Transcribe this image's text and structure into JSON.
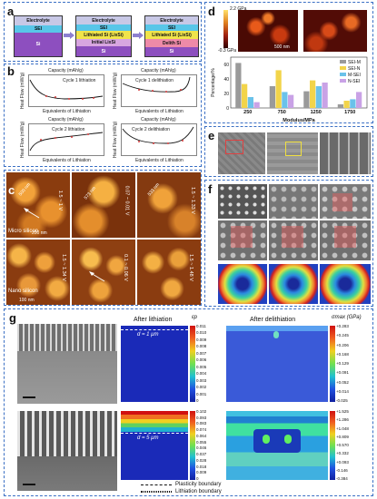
{
  "panel_labels": {
    "a": "a",
    "b": "b",
    "c": "c",
    "d": "d",
    "e": "e",
    "f": "f",
    "g": "g"
  },
  "panel_a": {
    "stage1": {
      "electrolyte": "Electrolyte",
      "sei": "SEI",
      "si": "Si"
    },
    "stage2": {
      "electrolyte": "Electrolyte",
      "sei": "SEI",
      "lithiated": "Lithiated Si (LixSi)",
      "initial": "Initial LixSi",
      "si": "Si"
    },
    "stage3": {
      "electrolyte": "Electrolyte",
      "sei": "SEI",
      "lithiated": "Lithiated Si (LixSi)",
      "delith": "Delith Si",
      "si": "Si"
    }
  },
  "panel_b": {
    "plots": [
      {
        "top_label": "Capacity (mAh/g)",
        "title": "Cycle 1 lithiation",
        "ylabel": "Heat Flow (mW/g)",
        "xlabel": "Equivalents of Lithiation"
      },
      {
        "top_label": "Capacity (mAh/g)",
        "title": "Cycle 1 delithiation",
        "ylabel": "Heat Flow (mW/g)",
        "xlabel": "Equivalents of Lithiation"
      },
      {
        "top_label": "Capacity (mAh/g)",
        "title": "Cycle 2 lithiation",
        "ylabel": "Heat Flow (mW/g)",
        "xlabel": "Equivalents of Lithiation"
      },
      {
        "top_label": "Capacity (mAh/g)",
        "title": "Cycle 2 delithiation",
        "ylabel": "Heat Flow (mW/g)",
        "xlabel": "Equivalents of Lithiation"
      }
    ]
  },
  "panel_c": {
    "micro": "Micro silicon",
    "nano": "Nano silicon",
    "scale_top": "200 nm",
    "scale_bottom": "100 nm",
    "voltages_top": [
      "1.5 ~ 1 V",
      "0.07 ~ 0.01 V",
      "1.5 ~ 1.33 V"
    ],
    "voltages_bottom": [
      "1.5 ~ 1.34 V",
      "0.1 ~ 0.06 V",
      "1.5 ~ 1.48 V"
    ],
    "annotations": [
      "500 nm",
      "573 nm",
      "533 nm"
    ]
  },
  "panel_d": {
    "colorbar_top": "2.2 GPa",
    "colorbar_bottom": "-0.3 GPa",
    "scale": "500 nm",
    "chart_data": {
      "type": "bar",
      "categories": [
        "250",
        "750",
        "1250",
        "1750"
      ],
      "series": [
        {
          "name": "SEI-M",
          "values": [
            62,
            30,
            23,
            5
          ]
        },
        {
          "name": "SEI-N",
          "values": [
            33,
            52,
            38,
            10
          ]
        },
        {
          "name": "M-SEI",
          "values": [
            15,
            22,
            30,
            12
          ]
        },
        {
          "name": "N-SEI",
          "values": [
            8,
            18,
            35,
            22
          ]
        }
      ],
      "xlabel": "Modulus/MPa",
      "ylabel": "Percentage/%",
      "yticks": [
        "0",
        "20",
        "40",
        "60"
      ],
      "ylim": [
        0,
        70
      ],
      "legend": "top-right",
      "colors": [
        "#9a9a9a",
        "#f2d44a",
        "#6ac2ea",
        "#c9a2e6"
      ]
    }
  },
  "panel_g": {
    "after_lithiation": "After lithiation",
    "after_delithiation": "After delithiation",
    "d1": "d = 1 μm",
    "d2": "d = 5 μm",
    "sigma": "σmax (GPa)",
    "ep": "εp",
    "cb1": [
      "0.011",
      "0.010",
      "0.009",
      "0.008",
      "0.007",
      "0.006",
      "0.005",
      "0.004",
      "0.003",
      "0.002",
      "0.001",
      "0"
    ],
    "cb2": [
      "+0.283",
      "+0.245",
      "+0.206",
      "+0.168",
      "+0.129",
      "+0.091",
      "+0.052",
      "+0.014",
      "-0.025"
    ],
    "cb3": [
      "0.102",
      "0.093",
      "0.083",
      "0.074",
      "0.064",
      "0.055",
      "0.046",
      "0.037",
      "0.028",
      "0.018",
      "0.009",
      "0"
    ],
    "cb4": [
      "+1.525",
      "+1.286",
      "+1.048",
      "+0.809",
      "+0.570",
      "+0.332",
      "+0.093",
      "-0.146",
      "-0.384"
    ],
    "legend_plasticity": "Plasticity boundary",
    "legend_lithiation": "Lithiation boundary"
  }
}
